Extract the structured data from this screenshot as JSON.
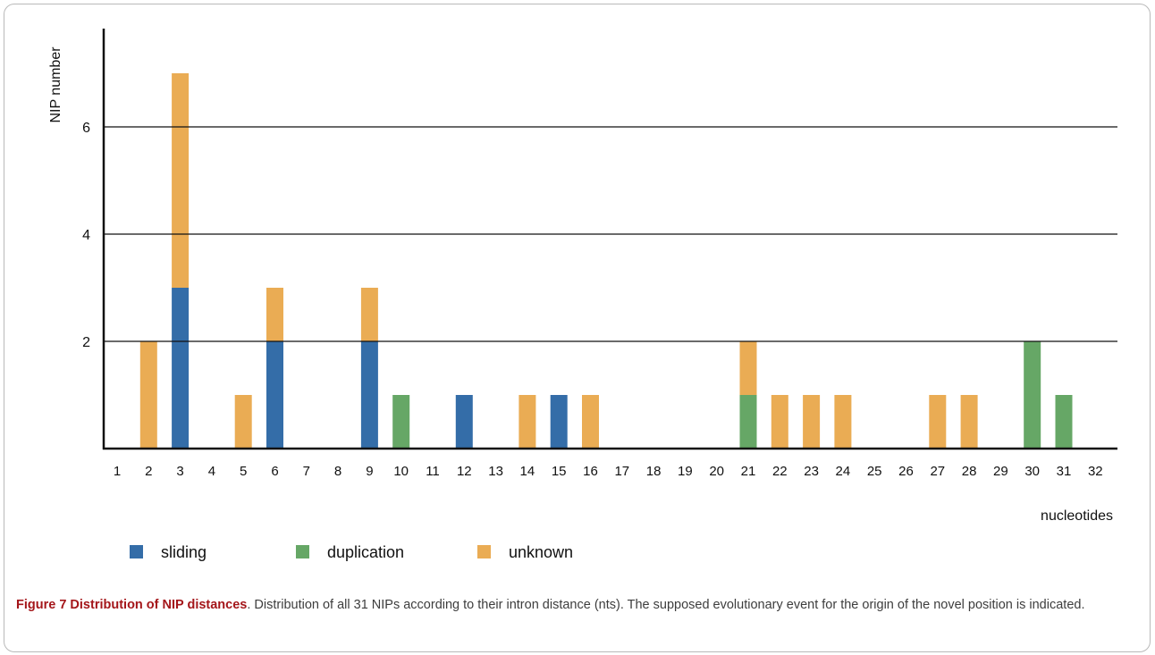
{
  "chart_data": {
    "type": "bar",
    "stacked": true,
    "ylabel": "NIP number",
    "xlabel": "nucleotides",
    "yticks": [
      2,
      4,
      6
    ],
    "ylim": [
      0,
      8
    ],
    "grid": "horizontal lines at 2, 4, 6",
    "legend_position": "bottom-left",
    "categories": [
      "1",
      "2",
      "3",
      "4",
      "5",
      "6",
      "7",
      "8",
      "9",
      "10",
      "11",
      "12",
      "13",
      "14",
      "15",
      "16",
      "17",
      "18",
      "19",
      "20",
      "21",
      "22",
      "23",
      "24",
      "25",
      "26",
      "27",
      "28",
      "29",
      "30",
      "31",
      "32"
    ],
    "series": [
      {
        "name": "sliding",
        "color": "#346da8",
        "values": [
          0,
          0,
          3,
          0,
          0,
          2,
          0,
          0,
          2,
          0,
          0,
          1,
          0,
          0,
          1,
          0,
          0,
          0,
          0,
          0,
          0,
          0,
          0,
          0,
          0,
          0,
          0,
          0,
          0,
          0,
          0,
          0
        ]
      },
      {
        "name": "duplication",
        "color": "#66a766",
        "values": [
          0,
          0,
          0,
          0,
          0,
          0,
          0,
          0,
          0,
          1,
          0,
          0,
          0,
          0,
          0,
          0,
          0,
          0,
          0,
          0,
          1,
          0,
          0,
          0,
          0,
          0,
          0,
          0,
          0,
          2,
          1,
          0
        ]
      },
      {
        "name": "unknown",
        "color": "#eaac54",
        "values": [
          0,
          2,
          4,
          0,
          1,
          1,
          0,
          0,
          1,
          0,
          0,
          0,
          0,
          1,
          0,
          1,
          0,
          0,
          0,
          0,
          1,
          1,
          1,
          1,
          0,
          0,
          1,
          1,
          0,
          0,
          0,
          0
        ]
      }
    ]
  },
  "caption": {
    "title": "Figure 7 Distribution of NIP distances",
    "text": ". Distribution of all 31 NIPs according to their intron distance (nts). The supposed evolutionary event for the origin of the novel position is indicated."
  }
}
